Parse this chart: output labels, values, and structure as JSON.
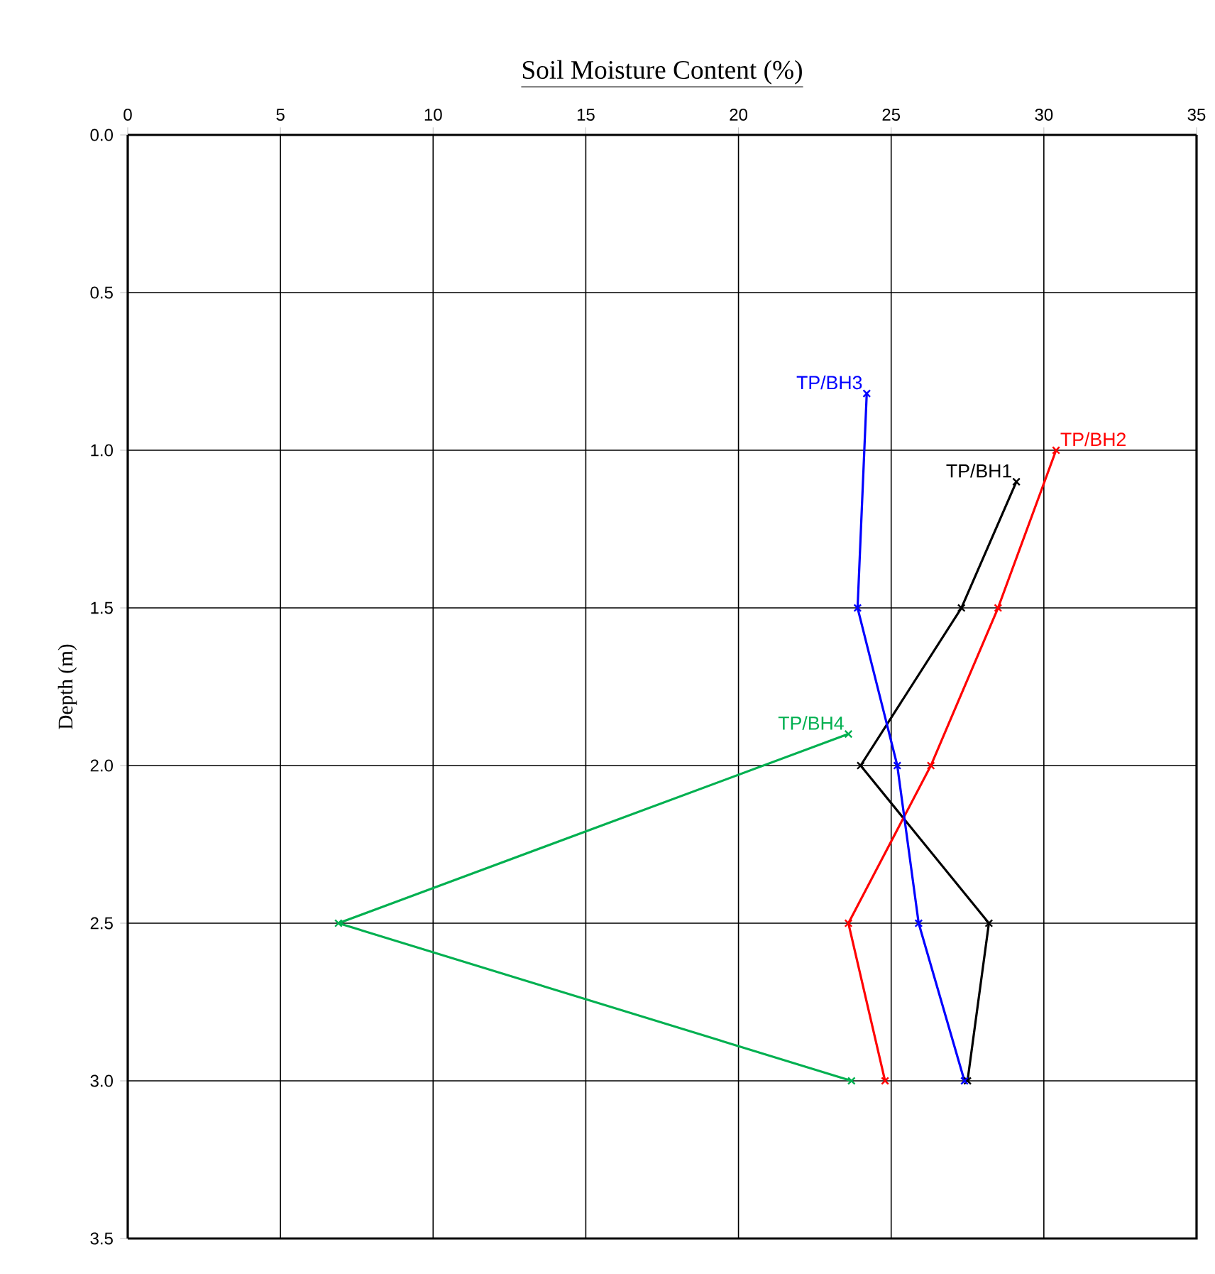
{
  "chart_data": {
    "type": "line",
    "xlabel": "Soil Moisture Content (%)",
    "ylabel": "Depth (m)",
    "xlim": [
      0,
      35
    ],
    "xticks": [
      0,
      5,
      10,
      15,
      20,
      25,
      30,
      35
    ],
    "ylim": [
      3.5,
      0
    ],
    "yticks": [
      {
        "value": 0,
        "label": "0.0"
      },
      {
        "value": 0.5,
        "label": "0.5"
      },
      {
        "value": 1,
        "label": "1.0"
      },
      {
        "value": 1.5,
        "label": "1.5"
      },
      {
        "value": 2,
        "label": "2.0"
      },
      {
        "value": 2.5,
        "label": "2.5"
      },
      {
        "value": 3,
        "label": "3.0"
      },
      {
        "value": 3.5,
        "label": "3.5"
      }
    ],
    "grid": true,
    "marker": "cross",
    "line_style": "solid",
    "series": [
      {
        "name": "TP/BH1",
        "color": "#000000",
        "x": [
          29.1,
          27.3,
          24.0,
          28.2,
          27.5
        ],
        "values": [
          1.1,
          1.5,
          2.0,
          2.5,
          3.0
        ]
      },
      {
        "name": "TP/BH2",
        "color": "#ff0000",
        "x": [
          30.4,
          28.5,
          26.3,
          23.6,
          24.8
        ],
        "values": [
          1.0,
          1.5,
          2.0,
          2.5,
          3.0
        ]
      },
      {
        "name": "TP/BH3",
        "color": "#0000ff",
        "x": [
          24.2,
          23.9,
          25.2,
          25.9,
          27.4
        ],
        "values": [
          0.82,
          1.5,
          2.0,
          2.5,
          3.0
        ]
      },
      {
        "name": "TP/BH4",
        "color": "#00b050",
        "x": [
          23.6,
          6.9,
          23.7
        ],
        "values": [
          1.9,
          2.5,
          3.0
        ]
      }
    ]
  }
}
